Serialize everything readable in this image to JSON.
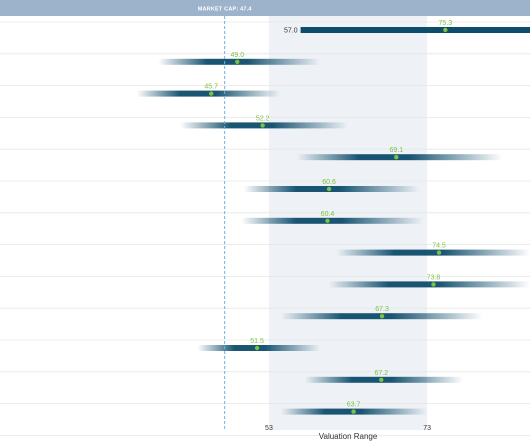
{
  "chart_data": {
    "type": "range-bar",
    "xlabel": "Valuation Range",
    "reference_line": {
      "label": "MARKET CAP: 47.4",
      "value": 47.4
    },
    "shaded_range": [
      53,
      73
    ],
    "tick_labels": [
      "53",
      "73"
    ],
    "xlim": [
      19,
      86
    ],
    "rows": [
      {
        "low": 57.0,
        "high": 86.0,
        "value": 75.3,
        "low_label": "57.0",
        "label": "75.3",
        "solid": true
      },
      {
        "low": 39.0,
        "high": 59.5,
        "value": 49.0,
        "label": "49.0"
      },
      {
        "low": 36.3,
        "high": 54.5,
        "value": 45.7,
        "label": "45.7"
      },
      {
        "low": 41.8,
        "high": 63.0,
        "value": 52.2,
        "label": "52.2"
      },
      {
        "low": 56.5,
        "high": 82.5,
        "value": 69.1,
        "label": "69.1"
      },
      {
        "low": 49.8,
        "high": 72.0,
        "value": 60.6,
        "label": "60.6"
      },
      {
        "low": 49.5,
        "high": 72.5,
        "value": 60.4,
        "label": "60.4"
      },
      {
        "low": 61.5,
        "high": 86.0,
        "value": 74.5,
        "label": "74.5"
      },
      {
        "low": 60.5,
        "high": 86.0,
        "value": 73.8,
        "label": "73.8"
      },
      {
        "low": 54.5,
        "high": 80.0,
        "value": 67.3,
        "label": "67.3"
      },
      {
        "low": 44.0,
        "high": 59.5,
        "value": 51.5,
        "label": "51.5"
      },
      {
        "low": 57.5,
        "high": 77.5,
        "value": 67.2,
        "label": "67.2"
      },
      {
        "low": 54.5,
        "high": 73.0,
        "value": 63.7,
        "label": "63.7"
      }
    ]
  },
  "colors": {
    "header": "#9db3cb",
    "bar": "#0e4c6b",
    "point": "#7cc142",
    "shade": "#eef2f7",
    "reference_line": "#6bb3e3",
    "grid": "#e6e6e6"
  }
}
